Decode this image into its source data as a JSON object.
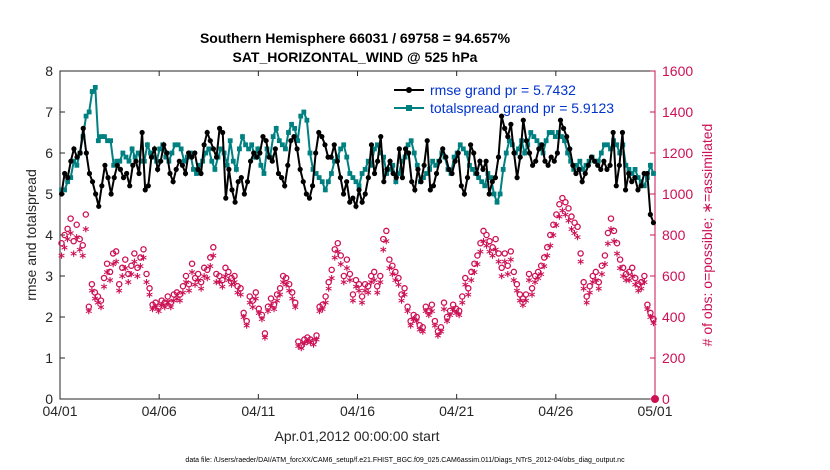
{
  "title_line1": "Southern Hemisphere 66031 / 69758 = 94.657%",
  "title_line2": "SAT_HORIZONTAL_WIND @ 525 hPa",
  "footer": "data file: /Users/raeder/DAI/ATM_forcXX/CAM6_setup/f.e21.FHIST_BGC.f09_025.CAM6assim.011/Diags_NTrS_2012-04/obs_diag_output.nc",
  "colors": {
    "rmse": "#000000",
    "spread": "#008080",
    "obs": "#cc1155",
    "legend_text": "#0033cc"
  },
  "chart_data": {
    "type": "line",
    "xlabel": "Apr.01,2012 00:00:00 start",
    "ylabel": "rmse and totalspread",
    "y2label": "# of obs: o=possible; ∗=assimilated",
    "xlim": [
      0,
      30
    ],
    "ylim": [
      0,
      8
    ],
    "y2lim": [
      0,
      1600
    ],
    "xticks": [
      0,
      5,
      10,
      15,
      20,
      25,
      30
    ],
    "xticklabels": [
      "04/01",
      "04/06",
      "04/11",
      "04/16",
      "04/21",
      "04/26",
      "05/01"
    ],
    "yticks": [
      0,
      1,
      2,
      3,
      4,
      5,
      6,
      7,
      8
    ],
    "y2ticks": [
      0,
      200,
      400,
      600,
      800,
      1000,
      1200,
      1400,
      1600
    ],
    "legend": {
      "placement": "top-right",
      "entries": [
        "rmse grand pr = 5.7432",
        "totalspread grand pr = 5.9123"
      ]
    },
    "grid": false,
    "series": [
      {
        "name": "rmse grand pr = 5.7432",
        "axis": "left",
        "marker": "dot",
        "values": [
          5.0,
          5.5,
          5.4,
          5.8,
          6.1,
          5.9,
          6.0,
          6.6,
          6.0,
          5.5,
          5.3,
          5.0,
          4.7,
          5.2,
          5.7,
          5.4,
          5.0,
          5.4,
          5.7,
          5.6,
          5.4,
          5.5,
          5.2,
          5.7,
          5.8,
          5.5,
          6.5,
          5.1,
          5.2,
          5.9,
          6.1,
          5.6,
          5.8,
          6.2,
          6.0,
          5.5,
          5.3,
          5.6,
          5.8,
          5.7,
          5.5,
          6.0,
          5.9,
          6.0,
          5.6,
          5.5,
          6.2,
          6.5,
          6.3,
          6.1,
          5.9,
          6.6,
          6.5,
          4.9,
          5.6,
          5.1,
          4.8,
          5.3,
          5.4,
          5.0,
          5.3,
          5.8,
          6.0,
          5.9,
          6.0,
          6.4,
          6.3,
          5.9,
          5.8,
          6.1,
          5.5,
          5.4,
          5.2,
          5.7,
          6.3,
          6.4,
          6.1,
          5.6,
          5.3,
          5.0,
          4.9,
          5.2,
          6.0,
          6.5,
          6.4,
          6.2,
          5.9,
          5.9,
          6.2,
          5.8,
          5.4,
          5.0,
          5.3,
          4.8,
          4.9,
          4.7,
          5.1,
          4.8,
          5.0,
          5.4,
          6.2,
          5.5,
          5.8,
          6.4,
          5.3,
          5.6,
          5.8,
          5.5,
          5.4,
          6.1,
          5.4,
          6.1,
          6.0,
          5.3,
          5.1,
          5.6,
          5.3,
          5.7,
          6.3,
          5.1,
          5.2,
          5.5,
          5.8,
          6.1,
          5.9,
          5.6,
          5.5,
          5.8,
          6.0,
          5.2,
          5.0,
          5.4,
          6.2,
          6.0,
          5.5,
          5.8,
          5.6,
          5.8,
          5.0,
          5.3,
          5.4,
          5.9,
          6.9,
          6.6,
          6.4,
          6.7,
          6.0,
          5.4,
          5.9,
          6.8,
          6.3,
          6.0,
          5.7,
          5.8,
          6.1,
          6.2,
          5.8,
          5.7,
          5.9,
          5.8,
          6.0,
          6.8,
          6.6,
          6.4,
          6.1,
          5.7,
          5.5,
          5.6,
          5.3,
          5.5,
          5.7,
          5.9,
          5.8,
          5.7,
          5.6,
          5.8,
          5.6,
          5.7,
          6.5,
          5.2,
          5.7,
          6.5,
          5.1,
          5.5,
          5.3,
          5.4,
          5.1,
          5.2,
          5.5,
          5.5,
          4.5,
          4.3
        ]
      },
      {
        "name": "totalspread grand pr = 5.9123",
        "axis": "left",
        "marker": "square",
        "values": [
          5.1,
          5.1,
          5.3,
          5.4,
          5.8,
          5.7,
          6.0,
          6.4,
          6.9,
          7.0,
          7.5,
          7.6,
          6.3,
          6.4,
          6.4,
          6.3,
          6.3,
          5.7,
          5.8,
          5.8,
          6.0,
          5.9,
          5.8,
          6.1,
          5.9,
          6.0,
          5.8,
          5.8,
          6.2,
          6.0,
          5.9,
          5.8,
          6.1,
          6.2,
          5.9,
          5.8,
          6.0,
          6.2,
          6.2,
          6.1,
          5.8,
          5.9,
          6.0,
          5.6,
          5.5,
          5.7,
          5.8,
          6.0,
          6.1,
          5.8,
          5.6,
          5.9,
          6.1,
          6.0,
          5.7,
          6.3,
          5.8,
          5.6,
          6.1,
          6.4,
          6.2,
          6.1,
          6.2,
          5.9,
          6.1,
          5.7,
          5.5,
          6.1,
          5.9,
          6.4,
          6.6,
          6.3,
          6.2,
          6.1,
          6.5,
          6.7,
          6.6,
          6.3,
          6.9,
          7.0,
          6.8,
          6.0,
          5.6,
          5.5,
          5.4,
          5.3,
          5.1,
          5.3,
          5.5,
          5.8,
          5.9,
          6.1,
          6.2,
          5.9,
          5.5,
          5.4,
          5.3,
          5.2,
          5.5,
          5.6,
          5.8,
          5.7,
          6.1,
          6.2,
          6.0,
          5.9,
          5.5,
          5.6,
          5.7,
          5.3,
          5.5,
          5.8,
          5.9,
          6.2,
          6.3,
          6.0,
          5.7,
          5.3,
          5.4,
          5.5,
          5.6,
          5.8,
          5.7,
          5.8,
          6.0,
          5.9,
          5.6,
          5.5,
          5.9,
          6.0,
          6.2,
          6.1,
          6.0,
          5.7,
          5.6,
          5.5,
          5.4,
          5.3,
          5.2,
          5.5,
          5.4,
          5.0,
          4.8,
          5.0,
          5.6,
          6.0,
          6.3,
          6.2,
          6.0,
          6.1,
          6.3,
          6.0,
          6.2,
          6.5,
          6.4,
          6.3,
          6.2,
          6.0,
          6.3,
          6.5,
          6.5,
          6.4,
          6.5,
          6.4,
          6.3,
          6.0,
          5.8,
          5.6,
          5.7,
          5.8,
          5.6,
          5.7,
          5.8,
          5.9,
          5.8,
          5.8,
          6.0,
          6.2,
          6.2,
          6.1,
          6.3,
          6.2,
          6.0,
          6.2,
          5.7,
          5.6,
          5.5,
          5.6,
          5.4,
          5.3,
          5.2,
          5.4,
          5.7,
          5.5
        ]
      },
      {
        "name": "possible",
        "axis": "right",
        "marker": "circle",
        "values": [
          760,
          800,
          830,
          880,
          770,
          850,
          780,
          750,
          900,
          450,
          560,
          520,
          500,
          480,
          590,
          660,
          620,
          710,
          720,
          560,
          640,
          680,
          610,
          650,
          710,
          640,
          690,
          730,
          610,
          540,
          460,
          470,
          450,
          480,
          470,
          500,
          470,
          510,
          520,
          510,
          550,
          600,
          560,
          660,
          590,
          610,
          570,
          640,
          630,
          690,
          740,
          610,
          600,
          580,
          640,
          620,
          590,
          600,
          550,
          540,
          420,
          380,
          500,
          480,
          520,
          440,
          410,
          320,
          450,
          490,
          460,
          510,
          540,
          600,
          590,
          560,
          520,
          470,
          280,
          260,
          290,
          300,
          290,
          280,
          310,
          450,
          460,
          500,
          570,
          630,
          730,
          760,
          700,
          600,
          680,
          610,
          510,
          580,
          560,
          500,
          560,
          550,
          600,
          620,
          550,
          600,
          780,
          820,
          680,
          650,
          620,
          590,
          510,
          540,
          450,
          380,
          410,
          400,
          360,
          350,
          450,
          430,
          460,
          380,
          330,
          350,
          470,
          400,
          430,
          460,
          440,
          430,
          500,
          590,
          540,
          620,
          660,
          700,
          760,
          820,
          800,
          770,
          740,
          780,
          710,
          640,
          710,
          650,
          720,
          620,
          560,
          510,
          490,
          510,
          610,
          540,
          600,
          620,
          650,
          690,
          740,
          800,
          850,
          900,
          950,
          980,
          960,
          930,
          890,
          860,
          840,
          710,
          570,
          500,
          550,
          600,
          620,
          570,
          650,
          700,
          810,
          880,
          820,
          760,
          680,
          640,
          610,
          620,
          640,
          590,
          560,
          570,
          600,
          460,
          420,
          390
        ]
      },
      {
        "name": "assimilated",
        "axis": "right",
        "marker": "star",
        "values": [
          690,
          730,
          770,
          800,
          700,
          780,
          720,
          690,
          820,
          420,
          520,
          480,
          460,
          440,
          540,
          610,
          570,
          650,
          660,
          520,
          590,
          630,
          560,
          600,
          660,
          590,
          640,
          680,
          560,
          500,
          430,
          440,
          420,
          450,
          440,
          460,
          440,
          470,
          480,
          470,
          510,
          560,
          520,
          610,
          550,
          570,
          530,
          590,
          580,
          640,
          690,
          560,
          560,
          540,
          590,
          570,
          550,
          560,
          510,
          500,
          390,
          350,
          460,
          440,
          480,
          410,
          380,
          290,
          420,
          450,
          430,
          470,
          500,
          560,
          550,
          520,
          480,
          440,
          250,
          240,
          260,
          270,
          265,
          255,
          280,
          420,
          430,
          460,
          530,
          580,
          680,
          710,
          650,
          560,
          630,
          570,
          470,
          540,
          520,
          460,
          520,
          510,
          560,
          570,
          510,
          560,
          720,
          760,
          630,
          600,
          570,
          550,
          470,
          500,
          420,
          350,
          380,
          370,
          330,
          320,
          420,
          400,
          420,
          350,
          300,
          320,
          430,
          370,
          400,
          430,
          410,
          400,
          460,
          550,
          500,
          570,
          610,
          650,
          710,
          760,
          740,
          710,
          690,
          720,
          660,
          590,
          660,
          600,
          670,
          570,
          520,
          470,
          450,
          470,
          570,
          500,
          560,
          580,
          600,
          640,
          690,
          740,
          790,
          840,
          880,
          910,
          890,
          860,
          820,
          800,
          780,
          660,
          530,
          460,
          510,
          560,
          570,
          530,
          600,
          650,
          750,
          820,
          760,
          700,
          630,
          590,
          570,
          570,
          590,
          550,
          520,
          530,
          560,
          430,
          390,
          360
        ]
      }
    ]
  }
}
